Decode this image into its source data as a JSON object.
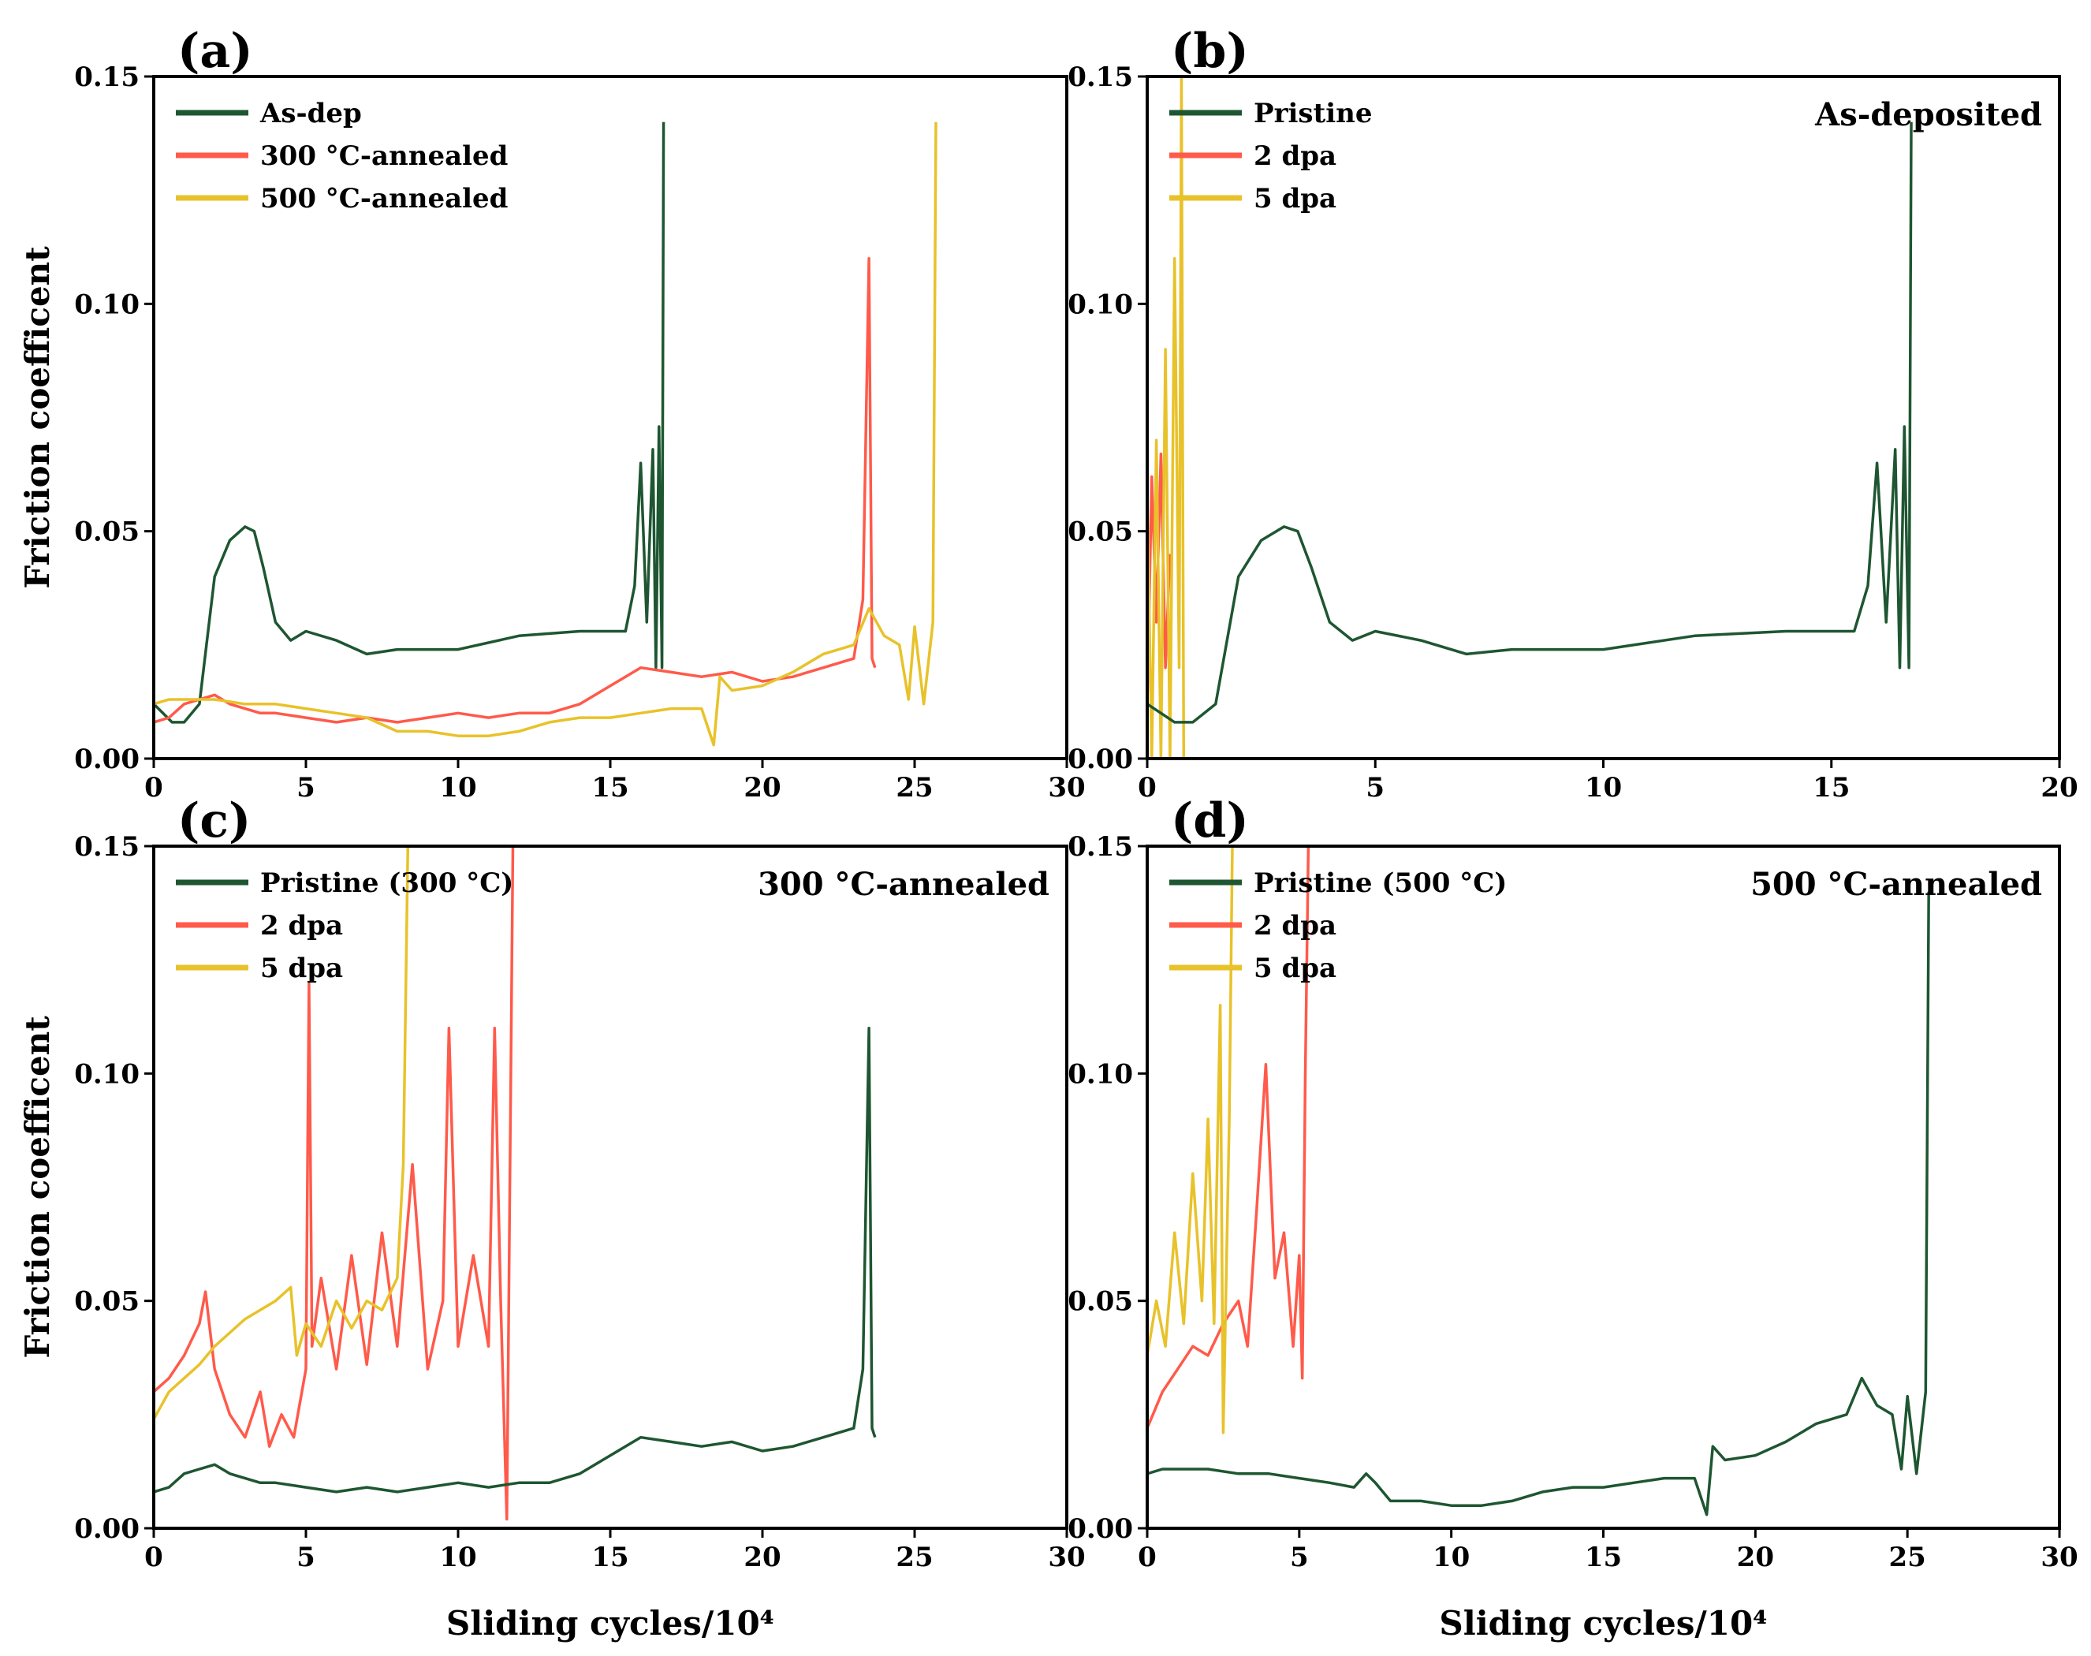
{
  "chart_data": [
    {
      "id": "a",
      "panel_label": "(a)",
      "type": "line",
      "xlabel": "",
      "ylabel": "Friction coefficent",
      "xlim": [
        0,
        30
      ],
      "ylim": [
        0,
        0.15
      ],
      "xticks": [
        0,
        5,
        10,
        15,
        20,
        25,
        30
      ],
      "yticks": [
        0.0,
        0.05,
        0.1,
        0.15
      ],
      "xtick_labels": [
        "0",
        "5",
        "10",
        "15",
        "20",
        "25",
        "30"
      ],
      "ytick_labels": [
        "0.00",
        "0.05",
        "0.10",
        "0.15"
      ],
      "annotation": "",
      "legend": [
        "As-dep",
        "300 °C-annealed",
        "500 °C-annealed"
      ],
      "series": [
        {
          "name": "As-dep",
          "color": "#1e5631",
          "x": [
            0,
            0.3,
            0.6,
            1.0,
            1.5,
            2.0,
            2.5,
            3.0,
            3.3,
            3.6,
            4.0,
            4.5,
            5.0,
            6.0,
            7.0,
            8.0,
            10.0,
            12.0,
            14.0,
            15.5,
            15.8,
            16.0,
            16.2,
            16.4,
            16.5,
            16.6,
            16.7,
            16.75
          ],
          "y": [
            0.012,
            0.01,
            0.008,
            0.008,
            0.012,
            0.04,
            0.048,
            0.051,
            0.05,
            0.042,
            0.03,
            0.026,
            0.028,
            0.026,
            0.023,
            0.024,
            0.024,
            0.027,
            0.028,
            0.028,
            0.038,
            0.065,
            0.03,
            0.068,
            0.02,
            0.073,
            0.02,
            0.14
          ]
        },
        {
          "name": "300 °C-annealed",
          "color": "#ff5a4a",
          "x": [
            0,
            0.5,
            1.0,
            1.5,
            2.0,
            2.5,
            3.0,
            3.5,
            4.0,
            5.0,
            6.0,
            7.0,
            8.0,
            9.0,
            10.0,
            11.0,
            12.0,
            13.0,
            14.0,
            15.0,
            16.0,
            17.0,
            18.0,
            19.0,
            20.0,
            21.0,
            22.0,
            23.0,
            23.3,
            23.5,
            23.6,
            23.7
          ],
          "y": [
            0.008,
            0.009,
            0.012,
            0.013,
            0.014,
            0.012,
            0.011,
            0.01,
            0.01,
            0.009,
            0.008,
            0.009,
            0.008,
            0.009,
            0.01,
            0.009,
            0.01,
            0.01,
            0.012,
            0.016,
            0.02,
            0.019,
            0.018,
            0.019,
            0.017,
            0.018,
            0.02,
            0.022,
            0.035,
            0.11,
            0.022,
            0.02
          ]
        },
        {
          "name": "500 °C-annealed",
          "color": "#e8c22a",
          "x": [
            0,
            0.5,
            1.0,
            2.0,
            3.0,
            4.0,
            5.0,
            6.0,
            7.0,
            8.0,
            9.0,
            10.0,
            11.0,
            12.0,
            13.0,
            14.0,
            15.0,
            16.0,
            17.0,
            18.0,
            18.4,
            18.6,
            19.0,
            20.0,
            21.0,
            22.0,
            23.0,
            23.5,
            24.0,
            24.5,
            24.8,
            25.0,
            25.3,
            25.6,
            25.7
          ],
          "y": [
            0.012,
            0.013,
            0.013,
            0.013,
            0.012,
            0.012,
            0.011,
            0.01,
            0.009,
            0.006,
            0.006,
            0.005,
            0.005,
            0.006,
            0.008,
            0.009,
            0.009,
            0.01,
            0.011,
            0.011,
            0.003,
            0.018,
            0.015,
            0.016,
            0.019,
            0.023,
            0.025,
            0.033,
            0.027,
            0.025,
            0.013,
            0.029,
            0.012,
            0.03,
            0.14
          ]
        }
      ]
    },
    {
      "id": "b",
      "panel_label": "(b)",
      "type": "line",
      "xlabel": "",
      "ylabel": "",
      "xlim": [
        0,
        20
      ],
      "ylim": [
        0,
        0.15
      ],
      "xticks": [
        0,
        5,
        10,
        15,
        20
      ],
      "yticks": [
        0.0,
        0.05,
        0.1,
        0.15
      ],
      "xtick_labels": [
        "0",
        "5",
        "10",
        "15",
        "20"
      ],
      "ytick_labels": [
        "0.00",
        "0.05",
        "0.10",
        "0.15"
      ],
      "annotation": "As-deposited",
      "legend": [
        "Pristine",
        "2 dpa",
        "5 dpa"
      ],
      "series": [
        {
          "name": "2 dpa",
          "color": "#ff5a4a",
          "x": [
            0,
            0.1,
            0.2,
            0.3,
            0.4,
            0.5
          ],
          "y": [
            0.012,
            0.062,
            0.03,
            0.067,
            0.02,
            0.045
          ]
        },
        {
          "name": "5 dpa",
          "color": "#e8c22a",
          "x": [
            0,
            0.1,
            0.2,
            0.3,
            0.4,
            0.5,
            0.6,
            0.7,
            0.75,
            0.8
          ],
          "y": [
            0.058,
            0.0,
            0.07,
            0.0,
            0.09,
            0.0,
            0.11,
            0.02,
            0.15,
            0.0
          ]
        },
        {
          "name": "Pristine",
          "color": "#1e5631",
          "x": [
            0,
            0.3,
            0.6,
            1.0,
            1.5,
            2.0,
            2.5,
            3.0,
            3.3,
            3.6,
            4.0,
            4.5,
            5.0,
            6.0,
            7.0,
            8.0,
            10.0,
            12.0,
            14.0,
            15.5,
            15.8,
            16.0,
            16.2,
            16.4,
            16.5,
            16.6,
            16.7,
            16.75
          ],
          "y": [
            0.012,
            0.01,
            0.008,
            0.008,
            0.012,
            0.04,
            0.048,
            0.051,
            0.05,
            0.042,
            0.03,
            0.026,
            0.028,
            0.026,
            0.023,
            0.024,
            0.024,
            0.027,
            0.028,
            0.028,
            0.038,
            0.065,
            0.03,
            0.068,
            0.02,
            0.073,
            0.02,
            0.14
          ]
        }
      ]
    },
    {
      "id": "c",
      "panel_label": "(c)",
      "type": "line",
      "xlabel": "Sliding cycles/10⁴",
      "ylabel": "Friction coefficent",
      "xlim": [
        0,
        30
      ],
      "ylim": [
        0,
        0.15
      ],
      "xticks": [
        0,
        5,
        10,
        15,
        20,
        25,
        30
      ],
      "yticks": [
        0.0,
        0.05,
        0.1,
        0.15
      ],
      "xtick_labels": [
        "0",
        "5",
        "10",
        "15",
        "20",
        "25",
        "30"
      ],
      "ytick_labels": [
        "0.00",
        "0.05",
        "0.10",
        "0.15"
      ],
      "annotation": "300 °C-annealed",
      "legend": [
        "Pristine (300 °C)",
        "2 dpa",
        "5 dpa"
      ],
      "series": [
        {
          "name": "2 dpa",
          "color": "#ff5a4a",
          "x": [
            0,
            0.5,
            1.0,
            1.5,
            1.7,
            2.0,
            2.5,
            3.0,
            3.5,
            3.8,
            4.2,
            4.6,
            5.0,
            5.1,
            5.2,
            5.5,
            6.0,
            6.5,
            7.0,
            7.5,
            8.0,
            8.5,
            9.0,
            9.5,
            9.7,
            10.0,
            10.5,
            11.0,
            11.2,
            11.4,
            11.6,
            11.8,
            11.9
          ],
          "y": [
            0.03,
            0.033,
            0.038,
            0.045,
            0.052,
            0.035,
            0.025,
            0.02,
            0.03,
            0.018,
            0.025,
            0.02,
            0.035,
            0.12,
            0.04,
            0.055,
            0.035,
            0.06,
            0.036,
            0.065,
            0.04,
            0.08,
            0.035,
            0.05,
            0.11,
            0.04,
            0.06,
            0.04,
            0.11,
            0.05,
            0.002,
            0.15,
            0.15
          ]
        },
        {
          "name": "5 dpa",
          "color": "#e8c22a",
          "x": [
            0,
            0.5,
            1.0,
            1.5,
            2.0,
            2.5,
            3.0,
            3.5,
            4.0,
            4.5,
            4.7,
            5.0,
            5.5,
            6.0,
            6.5,
            7.0,
            7.5,
            8.0,
            8.2,
            8.35,
            8.4
          ],
          "y": [
            0.024,
            0.03,
            0.033,
            0.036,
            0.04,
            0.043,
            0.046,
            0.048,
            0.05,
            0.053,
            0.038,
            0.045,
            0.04,
            0.05,
            0.044,
            0.05,
            0.048,
            0.055,
            0.08,
            0.15,
            0.15
          ]
        },
        {
          "name": "Pristine (300 °C)",
          "color": "#1e5631",
          "x": [
            0,
            0.5,
            1.0,
            1.5,
            2.0,
            2.5,
            3.0,
            3.5,
            4.0,
            5.0,
            6.0,
            7.0,
            8.0,
            9.0,
            10.0,
            11.0,
            12.0,
            13.0,
            14.0,
            15.0,
            16.0,
            17.0,
            18.0,
            19.0,
            20.0,
            21.0,
            22.0,
            23.0,
            23.3,
            23.5,
            23.6,
            23.7
          ],
          "y": [
            0.008,
            0.009,
            0.012,
            0.013,
            0.014,
            0.012,
            0.011,
            0.01,
            0.01,
            0.009,
            0.008,
            0.009,
            0.008,
            0.009,
            0.01,
            0.009,
            0.01,
            0.01,
            0.012,
            0.016,
            0.02,
            0.019,
            0.018,
            0.019,
            0.017,
            0.018,
            0.02,
            0.022,
            0.035,
            0.11,
            0.022,
            0.02
          ]
        }
      ]
    },
    {
      "id": "d",
      "panel_label": "(d)",
      "type": "line",
      "xlabel": "Sliding cycles/10⁴",
      "ylabel": "",
      "xlim": [
        0,
        30
      ],
      "ylim": [
        0,
        0.15
      ],
      "xticks": [
        0,
        5,
        10,
        15,
        20,
        25,
        30
      ],
      "yticks": [
        0.0,
        0.05,
        0.1,
        0.15
      ],
      "xtick_labels": [
        "0",
        "5",
        "10",
        "15",
        "20",
        "25",
        "30"
      ],
      "ytick_labels": [
        "0.00",
        "0.05",
        "0.10",
        "0.15"
      ],
      "annotation": "500 °C-annealed",
      "legend": [
        "Pristine (500 °C)",
        "2 dpa",
        "5 dpa"
      ],
      "series": [
        {
          "name": "2 dpa",
          "color": "#ff5a4a",
          "x": [
            0,
            0.5,
            1.0,
            1.5,
            2.0,
            2.5,
            3.0,
            3.3,
            3.6,
            3.9,
            4.2,
            4.5,
            4.8,
            5.0,
            5.1,
            5.2,
            5.3
          ],
          "y": [
            0.022,
            0.03,
            0.035,
            0.04,
            0.038,
            0.045,
            0.05,
            0.04,
            0.07,
            0.102,
            0.055,
            0.065,
            0.04,
            0.06,
            0.033,
            0.1,
            0.15
          ]
        },
        {
          "name": "5 dpa",
          "color": "#e8c22a",
          "x": [
            0,
            0.3,
            0.6,
            0.9,
            1.2,
            1.5,
            1.8,
            2.0,
            2.2,
            2.4,
            2.5,
            2.7,
            2.8
          ],
          "y": [
            0.038,
            0.05,
            0.04,
            0.065,
            0.045,
            0.078,
            0.05,
            0.09,
            0.045,
            0.115,
            0.021,
            0.09,
            0.15
          ]
        },
        {
          "name": "Pristine (500 °C)",
          "color": "#1e5631",
          "x": [
            0,
            0.5,
            1.0,
            2.0,
            3.0,
            4.0,
            5.0,
            6.0,
            6.8,
            7.2,
            7.5,
            8.0,
            9.0,
            10.0,
            11.0,
            12.0,
            13.0,
            14.0,
            15.0,
            16.0,
            17.0,
            18.0,
            18.4,
            18.6,
            19.0,
            20.0,
            21.0,
            22.0,
            23.0,
            23.5,
            24.0,
            24.5,
            24.8,
            25.0,
            25.3,
            25.6,
            25.7
          ],
          "y": [
            0.012,
            0.013,
            0.013,
            0.013,
            0.012,
            0.012,
            0.011,
            0.01,
            0.009,
            0.012,
            0.01,
            0.006,
            0.006,
            0.005,
            0.005,
            0.006,
            0.008,
            0.009,
            0.009,
            0.01,
            0.011,
            0.011,
            0.003,
            0.018,
            0.015,
            0.016,
            0.019,
            0.023,
            0.025,
            0.033,
            0.027,
            0.025,
            0.013,
            0.029,
            0.012,
            0.03,
            0.14
          ]
        }
      ]
    }
  ]
}
